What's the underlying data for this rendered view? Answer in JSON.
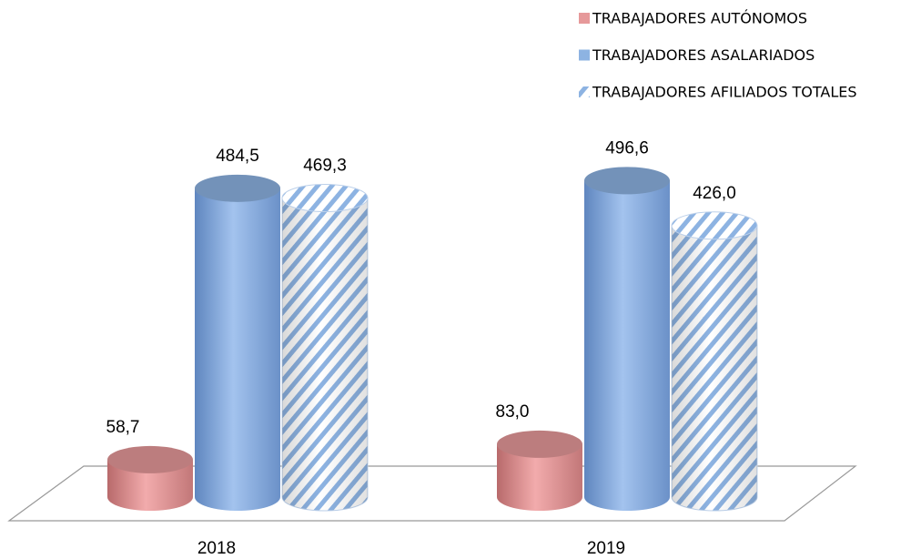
{
  "chart_data": {
    "type": "cylinder",
    "categories": [
      "2018",
      "2019"
    ],
    "series": [
      {
        "name": "TRABAJADORES AUTÓNOMOS",
        "color": "#e6999a",
        "values": [
          58.7,
          83.0
        ],
        "value_labels": [
          "58,7",
          "83,0"
        ]
      },
      {
        "name": "TRABAJADORES ASALARIADOS",
        "color": "#8db3e2",
        "values": [
          484.5,
          496.6
        ],
        "value_labels": [
          "484,5",
          "496,6"
        ]
      },
      {
        "name": "TRABAJADORES AFILIADOS TOTALES",
        "color": "#8db3e2",
        "hatch": true,
        "values": [
          469.3,
          426.0
        ],
        "value_labels": [
          "469,3",
          "426,0"
        ]
      }
    ],
    "legend": "top-right"
  }
}
